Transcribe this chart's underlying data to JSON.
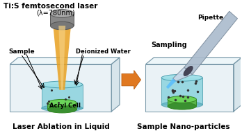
{
  "title_text": "Ti:S femtosecond laser",
  "lambda_text": "(λ=780nm)",
  "sample_label": "Sample",
  "water_label": "Deionized Water",
  "acryl_label": "Acryl Cell",
  "pipette_label": "Pipette",
  "sampling_label": "Sampling",
  "left_caption": "Laser Ablation in Liquid",
  "right_caption": "Sample Nano-particles",
  "bg_color": "#ffffff",
  "box_face": "#c5dce8",
  "box_edge": "#7a9aaa",
  "box_top_face": "#ddeef5",
  "box_right_face": "#b0ccd8",
  "cylinder_water_color": "#7ecfda",
  "cylinder_top_color": "#9de0e8",
  "sample_green_top": "#5ab44a",
  "sample_green_bot": "#3a9030",
  "laser_orange": "#e8a020",
  "laser_yellow": "#f5d080",
  "laser_src_top": "#bbbbbb",
  "laser_src_mid": "#888888",
  "laser_src_bot": "#666666",
  "arrow_fill": "#e07820",
  "arrow_edge": "#b05000",
  "pipette_body": "#aabbcc",
  "pipette_tip": "#c8d8e8",
  "pipette_edge": "#778899",
  "stream_color": "#55bbff",
  "nanoparticle_color": "#333333"
}
